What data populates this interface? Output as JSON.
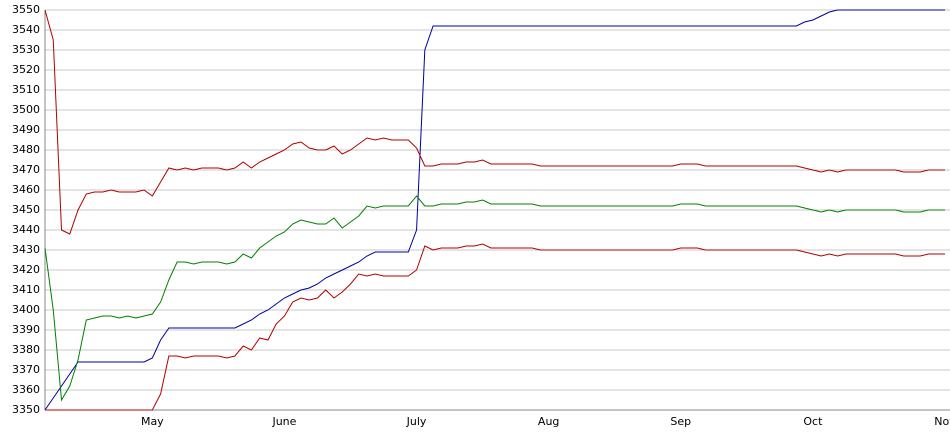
{
  "chart_data": {
    "type": "line",
    "categories": [
      null,
      null,
      null,
      null,
      null,
      null,
      null,
      null,
      null,
      null,
      null,
      null,
      null,
      "May",
      null,
      null,
      null,
      null,
      null,
      null,
      null,
      null,
      null,
      null,
      null,
      null,
      null,
      null,
      null,
      "June",
      null,
      null,
      null,
      null,
      null,
      null,
      null,
      null,
      null,
      null,
      null,
      null,
      null,
      null,
      null,
      "July",
      null,
      null,
      null,
      null,
      null,
      null,
      null,
      null,
      null,
      null,
      null,
      null,
      null,
      null,
      null,
      "Aug",
      null,
      null,
      null,
      null,
      null,
      null,
      null,
      null,
      null,
      null,
      null,
      null,
      null,
      null,
      null,
      "Sep",
      null,
      null,
      null,
      null,
      null,
      null,
      null,
      null,
      null,
      null,
      null,
      null,
      null,
      null,
      null,
      "Oct",
      null,
      null,
      null,
      null,
      null,
      null,
      null,
      null,
      null,
      null,
      null,
      null,
      null,
      null,
      null,
      "Nov"
    ],
    "series": [
      {
        "color": "#0000a0",
        "values": [
          3350,
          3356,
          3362,
          3368,
          3374,
          3374,
          3374,
          3374,
          3374,
          3374,
          3374,
          3374,
          3374,
          3376,
          3385,
          3391,
          3391,
          3391,
          3391,
          3391,
          3391,
          3391,
          3391,
          3391,
          3393,
          3395,
          3398,
          3400,
          3403,
          3406,
          3408,
          3410,
          3411,
          3413,
          3416,
          3418,
          3420,
          3422,
          3424,
          3427,
          3429,
          3429,
          3429,
          3429,
          3429,
          3440,
          3530,
          3542,
          3542,
          3542,
          3542,
          3542,
          3542,
          3542,
          3542,
          3542,
          3542,
          3542,
          3542,
          3542,
          3542,
          3542,
          3542,
          3542,
          3542,
          3542,
          3542,
          3542,
          3542,
          3542,
          3542,
          3542,
          3542,
          3542,
          3542,
          3542,
          3542,
          3542,
          3542,
          3542,
          3542,
          3542,
          3542,
          3542,
          3542,
          3542,
          3542,
          3542,
          3542,
          3542,
          3542,
          3542,
          3544,
          3545,
          3547,
          3549,
          3550,
          3550,
          3550,
          3550,
          3550,
          3550,
          3550,
          3550,
          3550,
          3550,
          3550,
          3550,
          3550,
          3550
        ]
      },
      {
        "color": "#b00000",
        "values": [
          3550,
          3535,
          3440,
          3438,
          3450,
          3458,
          3459,
          3459,
          3460,
          3459,
          3459,
          3459,
          3460,
          3457,
          3464,
          3471,
          3470,
          3471,
          3470,
          3471,
          3471,
          3471,
          3470,
          3471,
          3474,
          3471,
          3474,
          3476,
          3478,
          3480,
          3483,
          3484,
          3481,
          3480,
          3480,
          3482,
          3478,
          3480,
          3483,
          3486,
          3485,
          3486,
          3485,
          3485,
          3485,
          3481,
          3472,
          3472,
          3473,
          3473,
          3473,
          3474,
          3474,
          3475,
          3473,
          3473,
          3473,
          3473,
          3473,
          3473,
          3472,
          3472,
          3472,
          3472,
          3472,
          3472,
          3472,
          3472,
          3472,
          3472,
          3472,
          3472,
          3472,
          3472,
          3472,
          3472,
          3472,
          3473,
          3473,
          3473,
          3472,
          3472,
          3472,
          3472,
          3472,
          3472,
          3472,
          3472,
          3472,
          3472,
          3472,
          3472,
          3471,
          3470,
          3469,
          3470,
          3469,
          3470,
          3470,
          3470,
          3470,
          3470,
          3470,
          3470,
          3469,
          3469,
          3469,
          3470,
          3470,
          3470
        ]
      },
      {
        "color": "#008000",
        "values": [
          3431,
          3400,
          3355,
          3362,
          3375,
          3395,
          3396,
          3397,
          3397,
          3396,
          3397,
          3396,
          3397,
          3398,
          3404,
          3415,
          3424,
          3424,
          3423,
          3424,
          3424,
          3424,
          3423,
          3424,
          3428,
          3426,
          3431,
          3434,
          3437,
          3439,
          3443,
          3445,
          3444,
          3443,
          3443,
          3446,
          3441,
          3444,
          3447,
          3452,
          3451,
          3452,
          3452,
          3452,
          3452,
          3457,
          3452,
          3452,
          3453,
          3453,
          3453,
          3454,
          3454,
          3455,
          3453,
          3453,
          3453,
          3453,
          3453,
          3453,
          3452,
          3452,
          3452,
          3452,
          3452,
          3452,
          3452,
          3452,
          3452,
          3452,
          3452,
          3452,
          3452,
          3452,
          3452,
          3452,
          3452,
          3453,
          3453,
          3453,
          3452,
          3452,
          3452,
          3452,
          3452,
          3452,
          3452,
          3452,
          3452,
          3452,
          3452,
          3452,
          3451,
          3450,
          3449,
          3450,
          3449,
          3450,
          3450,
          3450,
          3450,
          3450,
          3450,
          3450,
          3449,
          3449,
          3449,
          3450,
          3450,
          3450
        ]
      },
      {
        "color": "#b00000",
        "values": [
          3350,
          3350,
          3350,
          3350,
          3350,
          3350,
          3350,
          3350,
          3350,
          3350,
          3350,
          3350,
          3350,
          3350,
          3358,
          3377,
          3377,
          3376,
          3377,
          3377,
          3377,
          3377,
          3376,
          3377,
          3382,
          3380,
          3386,
          3385,
          3393,
          3397,
          3404,
          3406,
          3405,
          3406,
          3410,
          3406,
          3409,
          3413,
          3418,
          3417,
          3418,
          3417,
          3417,
          3417,
          3417,
          3420,
          3432,
          3430,
          3431,
          3431,
          3431,
          3432,
          3432,
          3433,
          3431,
          3431,
          3431,
          3431,
          3431,
          3431,
          3430,
          3430,
          3430,
          3430,
          3430,
          3430,
          3430,
          3430,
          3430,
          3430,
          3430,
          3430,
          3430,
          3430,
          3430,
          3430,
          3430,
          3431,
          3431,
          3431,
          3430,
          3430,
          3430,
          3430,
          3430,
          3430,
          3430,
          3430,
          3430,
          3430,
          3430,
          3430,
          3429,
          3428,
          3427,
          3428,
          3427,
          3428,
          3428,
          3428,
          3428,
          3428,
          3428,
          3428,
          3427,
          3427,
          3427,
          3428,
          3428,
          3428
        ]
      }
    ],
    "ylim": [
      3350,
      3550
    ],
    "yticks": [
      3350,
      3360,
      3370,
      3380,
      3390,
      3400,
      3410,
      3420,
      3430,
      3440,
      3450,
      3460,
      3470,
      3480,
      3490,
      3500,
      3510,
      3520,
      3530,
      3540,
      3550
    ],
    "grid": true
  }
}
